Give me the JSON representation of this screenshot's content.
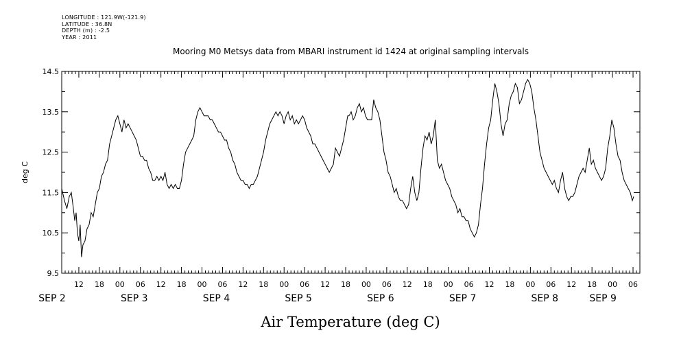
{
  "header": {
    "lines": [
      "LONGITUDE : 121.9W(-121.9)",
      "LATITUDE : 36.8N",
      "DEPTH (m) : -2.5",
      "YEAR : 2011"
    ]
  },
  "chart_data": {
    "type": "line",
    "title": "Mooring M0 Metsys data from MBARI instrument id 1424 at original sampling intervals",
    "xlabel": "Air Temperature (deg C)",
    "ylabel": "deg C",
    "ylim": [
      9.5,
      14.5
    ],
    "y_ticks": [
      "9.5",
      "10.5",
      "11.5",
      "12.5",
      "13.5",
      "14.5"
    ],
    "x_unit": "hours since 2011-09-02 00:00",
    "xlim": [
      7,
      91
    ],
    "hour_ticks": [
      {
        "h": 12,
        "label": "12"
      },
      {
        "h": 18,
        "label": "18"
      },
      {
        "h": 24,
        "label": "00"
      },
      {
        "h": 30,
        "label": "06"
      },
      {
        "h": 36,
        "label": "12"
      },
      {
        "h": 42,
        "label": "18"
      },
      {
        "h": 48,
        "label": "00"
      },
      {
        "h": 54,
        "label": "06"
      },
      {
        "h": 60,
        "label": "12"
      },
      {
        "h": 66,
        "label": "18"
      },
      {
        "h": 72,
        "label": "00"
      },
      {
        "h": 78,
        "label": "06"
      },
      {
        "h": 84,
        "label": "12"
      },
      {
        "h": 90,
        "label": "18"
      },
      {
        "h": 96,
        "label": "00"
      },
      {
        "h": 102,
        "label": "06"
      },
      {
        "h": 108,
        "label": "12"
      },
      {
        "h": 114,
        "label": "18"
      },
      {
        "h": 120,
        "label": "00"
      },
      {
        "h": 126,
        "label": "06"
      },
      {
        "h": 132,
        "label": "12"
      },
      {
        "h": 138,
        "label": "18"
      },
      {
        "h": 144,
        "label": "00"
      },
      {
        "h": 150,
        "label": "06"
      },
      {
        "h": 156,
        "label": "12"
      },
      {
        "h": 162,
        "label": "18"
      },
      {
        "h": 168,
        "label": "00"
      },
      {
        "h": 174,
        "label": "06"
      }
    ],
    "date_labels": [
      {
        "h": 4,
        "label": "SEP  2"
      },
      {
        "h": 28,
        "label": "SEP  3"
      },
      {
        "h": 52,
        "label": "SEP  4"
      },
      {
        "h": 76,
        "label": "SEP  5"
      },
      {
        "h": 100,
        "label": "SEP  6"
      },
      {
        "h": 124,
        "label": "SEP  7"
      },
      {
        "h": 148,
        "label": "SEP  8"
      },
      {
        "h": 165,
        "label": "SEP  9"
      }
    ],
    "x_range_hours": [
      7,
      176
    ],
    "series": [
      {
        "values": [
          [
            7,
            11.6
          ],
          [
            7.8,
            11.3
          ],
          [
            8.5,
            11.1
          ],
          [
            9.2,
            11.4
          ],
          [
            9.8,
            11.5
          ],
          [
            10.4,
            11.1
          ],
          [
            10.8,
            10.8
          ],
          [
            11.2,
            11.0
          ],
          [
            11.6,
            10.5
          ],
          [
            12,
            10.3
          ],
          [
            12.4,
            10.7
          ],
          [
            12.8,
            9.9
          ],
          [
            13.2,
            10.2
          ],
          [
            13.8,
            10.3
          ],
          [
            14.4,
            10.6
          ],
          [
            15,
            10.7
          ],
          [
            15.6,
            11.0
          ],
          [
            16.2,
            10.9
          ],
          [
            16.8,
            11.2
          ],
          [
            17.4,
            11.5
          ],
          [
            18,
            11.6
          ],
          [
            18.6,
            11.9
          ],
          [
            19.2,
            12.0
          ],
          [
            19.8,
            12.2
          ],
          [
            20.4,
            12.3
          ],
          [
            21,
            12.7
          ],
          [
            21.6,
            12.9
          ],
          [
            22.2,
            13.1
          ],
          [
            22.8,
            13.3
          ],
          [
            23.4,
            13.4
          ],
          [
            24,
            13.2
          ],
          [
            24.6,
            13.0
          ],
          [
            25.2,
            13.3
          ],
          [
            25.8,
            13.1
          ],
          [
            26.4,
            13.2
          ],
          [
            27,
            13.1
          ],
          [
            27.6,
            13.0
          ],
          [
            28.2,
            12.9
          ],
          [
            28.8,
            12.8
          ],
          [
            29.4,
            12.6
          ],
          [
            30,
            12.4
          ],
          [
            30.6,
            12.4
          ],
          [
            31.2,
            12.3
          ],
          [
            31.8,
            12.3
          ],
          [
            32.4,
            12.1
          ],
          [
            33,
            12.0
          ],
          [
            33.6,
            11.8
          ],
          [
            34.2,
            11.8
          ],
          [
            34.8,
            11.9
          ],
          [
            35.4,
            11.8
          ],
          [
            36,
            11.9
          ],
          [
            36.6,
            11.8
          ],
          [
            37.2,
            12.0
          ],
          [
            37.8,
            11.7
          ],
          [
            38.4,
            11.6
          ],
          [
            39,
            11.7
          ],
          [
            39.6,
            11.6
          ],
          [
            40.2,
            11.7
          ],
          [
            40.8,
            11.6
          ],
          [
            41.4,
            11.6
          ],
          [
            42,
            11.8
          ],
          [
            42.6,
            12.2
          ],
          [
            43.2,
            12.5
          ],
          [
            43.8,
            12.6
          ],
          [
            44.4,
            12.7
          ],
          [
            45,
            12.8
          ],
          [
            45.6,
            12.9
          ],
          [
            46.2,
            13.3
          ],
          [
            46.8,
            13.5
          ],
          [
            47.4,
            13.6
          ],
          [
            48,
            13.5
          ],
          [
            48.6,
            13.4
          ],
          [
            49.2,
            13.4
          ],
          [
            49.8,
            13.4
          ],
          [
            50.4,
            13.3
          ],
          [
            51,
            13.3
          ],
          [
            51.6,
            13.2
          ],
          [
            52.2,
            13.1
          ],
          [
            52.8,
            13.0
          ],
          [
            53.4,
            13.0
          ],
          [
            54,
            12.9
          ],
          [
            54.6,
            12.8
          ],
          [
            55.2,
            12.8
          ],
          [
            55.8,
            12.6
          ],
          [
            56.4,
            12.5
          ],
          [
            57,
            12.3
          ],
          [
            57.6,
            12.2
          ],
          [
            58.2,
            12.0
          ],
          [
            58.8,
            11.9
          ],
          [
            59.4,
            11.8
          ],
          [
            60,
            11.8
          ],
          [
            60.6,
            11.7
          ],
          [
            61.2,
            11.7
          ],
          [
            61.8,
            11.6
          ],
          [
            62.4,
            11.7
          ],
          [
            63,
            11.7
          ],
          [
            63.6,
            11.8
          ],
          [
            64.2,
            11.9
          ],
          [
            64.8,
            12.1
          ],
          [
            65.4,
            12.3
          ],
          [
            66,
            12.5
          ],
          [
            66.6,
            12.8
          ],
          [
            67.2,
            13.0
          ],
          [
            67.8,
            13.2
          ],
          [
            68.4,
            13.3
          ],
          [
            69,
            13.4
          ],
          [
            69.6,
            13.5
          ],
          [
            70.2,
            13.4
          ],
          [
            70.8,
            13.5
          ],
          [
            71.4,
            13.4
          ],
          [
            72,
            13.2
          ],
          [
            72.6,
            13.4
          ],
          [
            73.2,
            13.5
          ],
          [
            73.8,
            13.3
          ],
          [
            74.4,
            13.4
          ],
          [
            75,
            13.2
          ],
          [
            75.6,
            13.3
          ],
          [
            76.2,
            13.2
          ],
          [
            76.8,
            13.3
          ],
          [
            77.4,
            13.4
          ],
          [
            78,
            13.3
          ],
          [
            78.6,
            13.1
          ],
          [
            79.2,
            13.0
          ],
          [
            79.8,
            12.9
          ],
          [
            80.4,
            12.7
          ],
          [
            81,
            12.7
          ],
          [
            81.6,
            12.6
          ],
          [
            82.2,
            12.5
          ],
          [
            82.8,
            12.4
          ],
          [
            83.4,
            12.3
          ],
          [
            84,
            12.2
          ],
          [
            84.6,
            12.1
          ],
          [
            85.2,
            12.0
          ],
          [
            85.8,
            12.1
          ],
          [
            86.4,
            12.2
          ],
          [
            87,
            12.6
          ],
          [
            87.6,
            12.5
          ],
          [
            88.2,
            12.4
          ],
          [
            88.8,
            12.6
          ],
          [
            89.4,
            12.8
          ],
          [
            90,
            13.1
          ],
          [
            90.6,
            13.4
          ],
          [
            91,
            13.4
          ]
        ]
      },
      {
        "values": [
          [
            91,
            13.4
          ],
          [
            91.6,
            13.5
          ],
          [
            92.2,
            13.3
          ],
          [
            92.8,
            13.4
          ],
          [
            93.4,
            13.6
          ],
          [
            94,
            13.7
          ],
          [
            94.6,
            13.5
          ],
          [
            95.2,
            13.6
          ],
          [
            95.8,
            13.4
          ],
          [
            96.4,
            13.3
          ],
          [
            97,
            13.3
          ],
          [
            97.6,
            13.3
          ],
          [
            98.2,
            13.8
          ],
          [
            98.8,
            13.6
          ],
          [
            99.4,
            13.5
          ],
          [
            100,
            13.3
          ],
          [
            100.6,
            12.9
          ],
          [
            101.2,
            12.5
          ],
          [
            101.8,
            12.3
          ],
          [
            102.4,
            12.0
          ],
          [
            103,
            11.9
          ],
          [
            103.6,
            11.7
          ],
          [
            104.2,
            11.5
          ],
          [
            104.8,
            11.6
          ],
          [
            105.4,
            11.4
          ],
          [
            106,
            11.3
          ],
          [
            106.6,
            11.3
          ],
          [
            107.2,
            11.2
          ],
          [
            107.8,
            11.1
          ],
          [
            108.4,
            11.2
          ],
          [
            109,
            11.6
          ],
          [
            109.6,
            11.9
          ],
          [
            110.2,
            11.5
          ],
          [
            110.8,
            11.3
          ],
          [
            111.4,
            11.5
          ],
          [
            112,
            12.1
          ],
          [
            112.6,
            12.6
          ],
          [
            113.2,
            12.9
          ],
          [
            113.8,
            12.8
          ],
          [
            114.4,
            13.0
          ],
          [
            115,
            12.7
          ],
          [
            115.6,
            12.9
          ],
          [
            116.2,
            13.3
          ],
          [
            116.8,
            12.3
          ],
          [
            117.4,
            12.1
          ],
          [
            118,
            12.2
          ],
          [
            118.6,
            12.0
          ],
          [
            119.2,
            11.8
          ],
          [
            119.8,
            11.7
          ],
          [
            120.4,
            11.6
          ],
          [
            121,
            11.4
          ],
          [
            121.6,
            11.3
          ],
          [
            122.2,
            11.2
          ],
          [
            122.8,
            11.0
          ],
          [
            123.4,
            11.1
          ],
          [
            124,
            10.9
          ],
          [
            124.6,
            10.9
          ],
          [
            125.2,
            10.8
          ],
          [
            125.8,
            10.8
          ],
          [
            126.4,
            10.6
          ],
          [
            127,
            10.5
          ],
          [
            127.6,
            10.4
          ],
          [
            128.2,
            10.5
          ],
          [
            128.8,
            10.7
          ],
          [
            129.4,
            11.2
          ],
          [
            130,
            11.6
          ],
          [
            130.6,
            12.2
          ],
          [
            131.2,
            12.7
          ],
          [
            131.8,
            13.1
          ],
          [
            132.4,
            13.3
          ],
          [
            133,
            13.8
          ],
          [
            133.6,
            14.2
          ],
          [
            134.2,
            14.0
          ],
          [
            134.8,
            13.7
          ],
          [
            135.4,
            13.2
          ],
          [
            136,
            12.9
          ],
          [
            136.6,
            13.2
          ],
          [
            137.2,
            13.3
          ],
          [
            137.8,
            13.7
          ],
          [
            138.4,
            13.9
          ],
          [
            139,
            14.0
          ],
          [
            139.6,
            14.2
          ],
          [
            140.2,
            14.1
          ],
          [
            140.8,
            13.7
          ],
          [
            141.4,
            13.8
          ],
          [
            142,
            14.0
          ],
          [
            142.6,
            14.2
          ],
          [
            143.2,
            14.3
          ],
          [
            143.8,
            14.2
          ],
          [
            144.4,
            14.0
          ],
          [
            145,
            13.6
          ],
          [
            145.6,
            13.3
          ],
          [
            146.2,
            12.9
          ],
          [
            146.8,
            12.5
          ],
          [
            147.4,
            12.3
          ],
          [
            148,
            12.1
          ],
          [
            148.6,
            12.0
          ],
          [
            149.2,
            11.9
          ],
          [
            149.8,
            11.8
          ],
          [
            150.4,
            11.7
          ],
          [
            151,
            11.8
          ],
          [
            151.6,
            11.6
          ],
          [
            152.2,
            11.5
          ],
          [
            152.8,
            11.8
          ],
          [
            153.4,
            12.0
          ],
          [
            154,
            11.6
          ],
          [
            154.6,
            11.4
          ],
          [
            155.2,
            11.3
          ],
          [
            155.8,
            11.4
          ],
          [
            156.4,
            11.4
          ],
          [
            157,
            11.5
          ],
          [
            157.6,
            11.7
          ],
          [
            158.2,
            11.9
          ],
          [
            158.8,
            12.0
          ],
          [
            159.4,
            12.1
          ],
          [
            160,
            12.0
          ],
          [
            160.6,
            12.3
          ],
          [
            161.2,
            12.6
          ],
          [
            161.8,
            12.2
          ],
          [
            162.4,
            12.3
          ],
          [
            163,
            12.1
          ],
          [
            163.6,
            12.0
          ],
          [
            164.2,
            11.9
          ],
          [
            164.8,
            11.8
          ],
          [
            165.4,
            11.9
          ],
          [
            166,
            12.1
          ],
          [
            166.6,
            12.6
          ],
          [
            167.2,
            12.9
          ],
          [
            167.8,
            13.3
          ],
          [
            168.4,
            13.1
          ],
          [
            169,
            12.7
          ],
          [
            169.6,
            12.4
          ],
          [
            170.2,
            12.3
          ],
          [
            170.8,
            12.0
          ],
          [
            171.4,
            11.8
          ],
          [
            172,
            11.7
          ],
          [
            172.6,
            11.6
          ],
          [
            173.2,
            11.5
          ],
          [
            173.8,
            11.3
          ],
          [
            174.2,
            11.4
          ]
        ]
      }
    ]
  }
}
